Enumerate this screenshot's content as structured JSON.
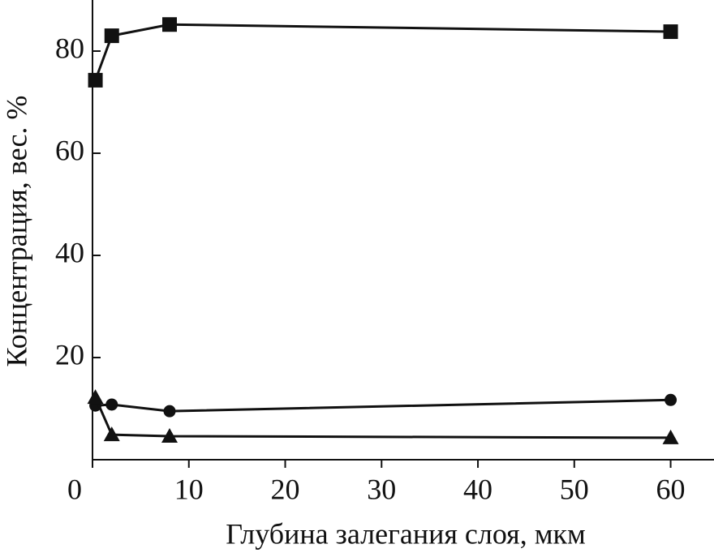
{
  "chart_data": {
    "type": "line",
    "x_label": "Глубина залегания слоя, мкм",
    "y_label": "Концентрация, вес. %",
    "xlim": [
      0,
      64.5
    ],
    "xticks": [
      0,
      10,
      20,
      30,
      40,
      50,
      60
    ],
    "ylim": [
      0,
      90
    ],
    "yticks": [
      20,
      40,
      60,
      80
    ],
    "color": "#111111",
    "series": [
      {
        "marker": "square",
        "x": [
          0.3,
          2,
          8,
          60
        ],
        "values": [
          74.3,
          83.0,
          85.2,
          83.8
        ]
      },
      {
        "marker": "circle",
        "x": [
          0.3,
          2,
          8,
          60
        ],
        "values": [
          10.6,
          10.8,
          9.5,
          11.7
        ]
      },
      {
        "marker": "triangle",
        "x": [
          0.3,
          2,
          8,
          60
        ],
        "values": [
          12.2,
          4.9,
          4.6,
          4.3
        ]
      }
    ]
  }
}
